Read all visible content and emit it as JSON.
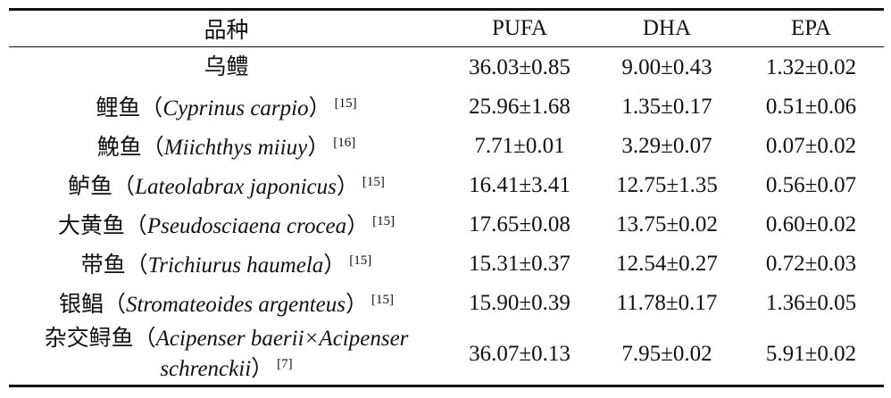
{
  "table": {
    "header": [
      "品种",
      "PUFA",
      "DHA",
      "EPA"
    ],
    "rows": [
      {
        "name": "乌鳢",
        "values": [
          "36.03±0.85",
          "9.00±0.43",
          "1.32±0.02"
        ]
      },
      {
        "name": "鲤鱼（",
        "latin": "Cyprinus carpio",
        "close": "）",
        "ref": "[15]",
        "values": [
          "25.96±1.68",
          "1.35±0.17",
          "0.51±0.06"
        ]
      },
      {
        "name": "鮸鱼（",
        "latin": "Miichthys miiuy",
        "close": "）",
        "ref": "[16]",
        "values": [
          "7.71±0.01",
          "3.29±0.07",
          "0.07±0.02"
        ]
      },
      {
        "name": "鲈鱼（",
        "latin": "Lateolabrax japonicus",
        "close": "）",
        "ref": "[15]",
        "values": [
          "16.41±3.41",
          "12.75±1.35",
          "0.56±0.07"
        ]
      },
      {
        "name": "大黄鱼（",
        "latin": "Pseudosciaena crocea",
        "close": "）",
        "ref": "[15]",
        "values": [
          "17.65±0.08",
          "13.75±0.02",
          "0.60±0.02"
        ]
      },
      {
        "name": "带鱼（",
        "latin": "Trichiurus haumela",
        "close": "）",
        "ref": "[15]",
        "values": [
          "15.31±0.37",
          "12.54±0.27",
          "0.72±0.03"
        ]
      },
      {
        "name": "银鲳（",
        "latin": "Stromateoides argenteus",
        "close": "）",
        "ref": "[15]",
        "values": [
          "15.90±0.39",
          "11.78±0.17",
          "1.36±0.05"
        ]
      },
      {
        "name": "杂交鲟鱼（",
        "latin": "Acipenser baerii×Acipenser schrenckii",
        "close": "）",
        "ref": "[7]",
        "values": [
          "36.07±0.13",
          "7.95±0.02",
          "5.91±0.02"
        ]
      }
    ]
  }
}
